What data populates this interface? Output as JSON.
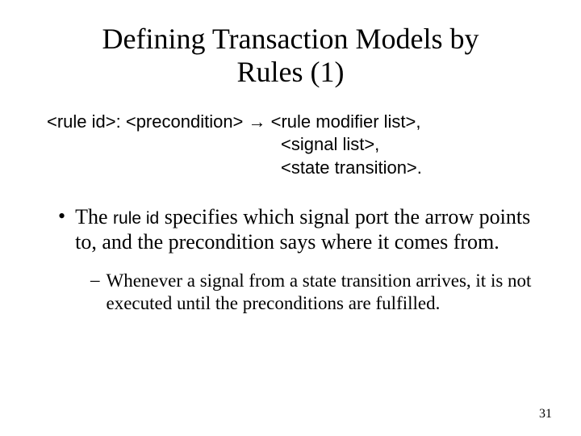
{
  "title_line1": "Defining Transaction Models by",
  "title_line2": "Rules (1)",
  "grammar": {
    "lhs": "<rule id>: <precondition> → ",
    "rhs1": "<rule modifier list>,",
    "rhs2": "<signal list>,",
    "rhs3": "<state transition>."
  },
  "bullet": {
    "marker": "•",
    "part1": "The ",
    "small": "rule id",
    "part2": " specifies which signal port the arrow points to, and the precondition says where it comes from."
  },
  "sub": {
    "marker": "–",
    "text": "Whenever a signal from a state transition arrives, it is not executed until the preconditions are fulfilled."
  },
  "page_number": "31",
  "colors": {
    "background": "#ffffff",
    "text": "#000000"
  },
  "fonts": {
    "title_size": 36,
    "body_size": 26,
    "sub_size": 23,
    "grammar_size": 22,
    "pagenum_size": 16,
    "serif": "Times New Roman",
    "sans": "Arial"
  }
}
